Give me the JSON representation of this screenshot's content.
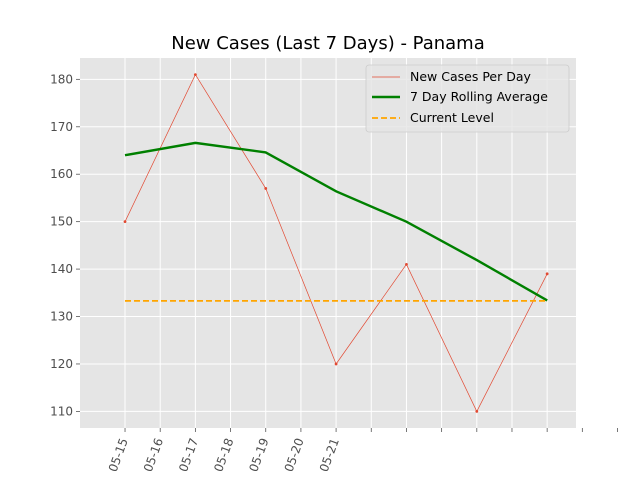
{
  "chart_data": {
    "type": "line",
    "title": "New Cases (Last 7 Days) - Panama",
    "xlabel": "",
    "ylabel": "",
    "x_tick_labels": [
      "05-15",
      "05-16",
      "05-17",
      "05-18",
      "05-19",
      "05-20",
      "05-21",
      "",
      "",
      "",
      "",
      "",
      "",
      "",
      ""
    ],
    "y_ticks": [
      110,
      120,
      130,
      140,
      150,
      160,
      170,
      180
    ],
    "ylim": [
      106.5,
      184.5
    ],
    "grid": true,
    "legend_position": "top-right",
    "series": [
      {
        "name": "New Cases Per Day",
        "style": "thin-line-with-markers",
        "color": "#E24A33",
        "points": [
          {
            "date": "2020-05-15",
            "value": 150
          },
          {
            "date": "2020-05-16",
            "value": 181
          },
          {
            "date": "2020-05-17",
            "value": 157
          },
          {
            "date": "2020-05-18",
            "value": 120
          },
          {
            "date": "2020-05-19",
            "value": 141
          },
          {
            "date": "2020-05-20",
            "value": 110
          },
          {
            "date": "2020-05-21",
            "value": 139
          }
        ]
      },
      {
        "name": "7 Day Rolling Average",
        "style": "thick-line",
        "color": "#008000",
        "points": [
          {
            "date": "2020-05-15",
            "value": 164.0
          },
          {
            "date": "2020-05-16",
            "value": 166.6
          },
          {
            "date": "2020-05-17",
            "value": 164.6
          },
          {
            "date": "2020-05-18",
            "value": 156.4
          },
          {
            "date": "2020-05-19",
            "value": 150.0
          },
          {
            "date": "2020-05-20",
            "value": 141.9
          },
          {
            "date": "2020-05-21",
            "value": 133.4
          }
        ]
      },
      {
        "name": "Current Level",
        "style": "dashed-line",
        "color": "#FFA500",
        "points": [
          {
            "date": "2020-05-15",
            "value": 133.3
          },
          {
            "date": "2020-05-21",
            "value": 133.3
          }
        ]
      }
    ]
  }
}
